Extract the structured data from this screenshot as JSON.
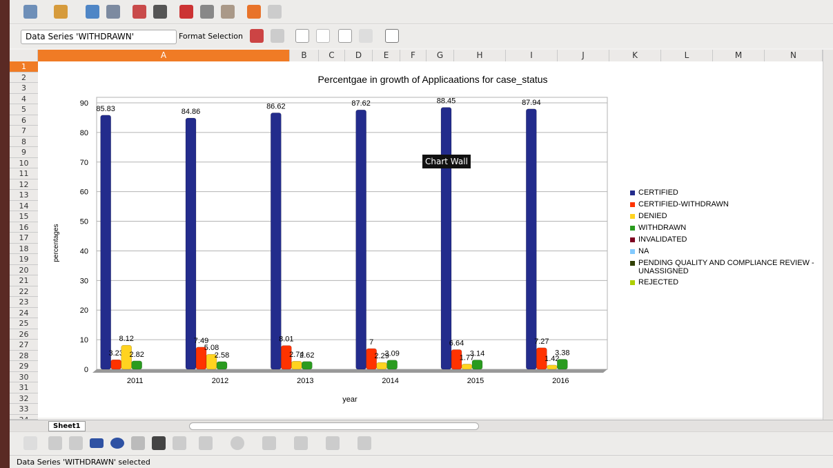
{
  "toolbar": {
    "series_selector": "Data Series 'WITHDRAWN'",
    "format_selection": "Format Selection"
  },
  "columns": [
    "A",
    "B",
    "C",
    "D",
    "E",
    "F",
    "G",
    "H",
    "I",
    "J",
    "K",
    "L",
    "M",
    "N"
  ],
  "rows": [
    1,
    2,
    3,
    4,
    5,
    6,
    7,
    8,
    9,
    10,
    11,
    12,
    13,
    14,
    15,
    16,
    17,
    18,
    19,
    20,
    21,
    22,
    23,
    24,
    25,
    26,
    27,
    28,
    29,
    30,
    31,
    32,
    33,
    34
  ],
  "chart_data": {
    "type": "bar",
    "title": "Percentgae in growth of Applicaations for case_status",
    "x_label": "year",
    "y_label": "percentages",
    "categories": [
      "2011",
      "2012",
      "2013",
      "2014",
      "2015",
      "2016"
    ],
    "series": [
      {
        "name": "CERTIFIED",
        "color": "#232c8c",
        "values": [
          85.83,
          84.86,
          86.62,
          87.62,
          88.45,
          87.94
        ]
      },
      {
        "name": "CERTIFIED-WITHDRAWN",
        "color": "#ff3300",
        "values": [
          3.23,
          7.49,
          8.01,
          7,
          6.64,
          7.27
        ]
      },
      {
        "name": "DENIED",
        "color": "#ffd320",
        "values": [
          8.12,
          5.08,
          2.74,
          2.29,
          1.77,
          1.42
        ]
      },
      {
        "name": "WITHDRAWN",
        "color": "#2a9b1f",
        "values": [
          2.82,
          2.58,
          2.62,
          3.09,
          3.14,
          3.38
        ]
      },
      {
        "name": "INVALIDATED",
        "color": "#7e0021",
        "values": [
          0,
          0,
          0,
          0,
          0,
          0
        ]
      },
      {
        "name": "NA",
        "color": "#83caff",
        "values": [
          0,
          0,
          0,
          0,
          0,
          0
        ]
      },
      {
        "name": "PENDING QUALITY AND COMPLIANCE REVIEW - UNASSIGNED",
        "color": "#314004",
        "values": [
          0,
          0,
          0,
          0,
          0,
          0
        ]
      },
      {
        "name": "REJECTED",
        "color": "#aecf00",
        "values": [
          0,
          0,
          0,
          0,
          0,
          0
        ]
      }
    ],
    "ylim": [
      0,
      90
    ],
    "yticks": [
      0,
      10,
      20,
      30,
      40,
      50,
      60,
      70,
      80,
      90
    ],
    "grid": true,
    "legend": "right",
    "tooltip": "Chart Wall"
  },
  "sheet_tab": "Sheet1",
  "status_bar": "Data Series 'WITHDRAWN' selected"
}
